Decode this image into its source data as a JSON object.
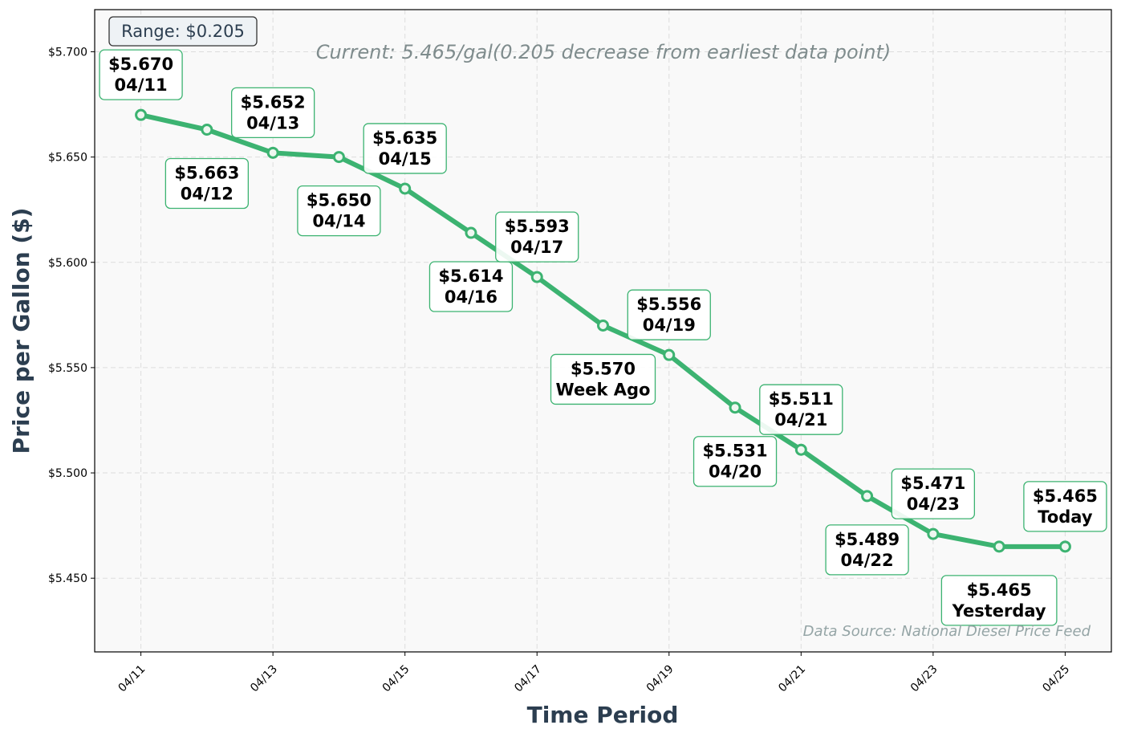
{
  "chart_data": {
    "type": "line",
    "title": "",
    "xlabel": "Time Period",
    "ylabel": "Price per Gallon ($)",
    "x": [
      "04/11",
      "04/12",
      "04/13",
      "04/14",
      "04/15",
      "04/16",
      "04/17",
      "04/18",
      "04/19",
      "04/20",
      "04/21",
      "04/22",
      "04/23",
      "04/24",
      "04/25"
    ],
    "values": [
      5.67,
      5.663,
      5.652,
      5.65,
      5.635,
      5.614,
      5.593,
      5.57,
      5.556,
      5.531,
      5.511,
      5.489,
      5.471,
      5.465,
      5.465
    ],
    "point_labels": [
      {
        "price": "$5.670",
        "tag": "04/11",
        "position": "above"
      },
      {
        "price": "$5.663",
        "tag": "04/12",
        "position": "below"
      },
      {
        "price": "$5.652",
        "tag": "04/13",
        "position": "above"
      },
      {
        "price": "$5.650",
        "tag": "04/14",
        "position": "below"
      },
      {
        "price": "$5.635",
        "tag": "04/15",
        "position": "above"
      },
      {
        "price": "$5.614",
        "tag": "04/16",
        "position": "below"
      },
      {
        "price": "$5.593",
        "tag": "04/17",
        "position": "above"
      },
      {
        "price": "$5.570",
        "tag": "Week Ago",
        "position": "below"
      },
      {
        "price": "$5.556",
        "tag": "04/19",
        "position": "above"
      },
      {
        "price": "$5.531",
        "tag": "04/20",
        "position": "below"
      },
      {
        "price": "$5.511",
        "tag": "04/21",
        "position": "above"
      },
      {
        "price": "$5.489",
        "tag": "04/22",
        "position": "below"
      },
      {
        "price": "$5.471",
        "tag": "04/23",
        "position": "above"
      },
      {
        "price": "$5.465",
        "tag": "Yesterday",
        "position": "below"
      },
      {
        "price": "$5.465",
        "tag": "Today",
        "position": "above"
      }
    ],
    "x_ticks": [
      "04/11",
      "04/13",
      "04/15",
      "04/17",
      "04/19",
      "04/21",
      "04/23",
      "04/25"
    ],
    "y_ticks": [
      5.45,
      5.5,
      5.55,
      5.6,
      5.65,
      5.7
    ],
    "y_tick_labels": [
      "$5.450",
      "$5.500",
      "$5.550",
      "$5.600",
      "$5.650",
      "$5.700"
    ],
    "ylim": [
      5.415,
      5.72
    ],
    "grid": true,
    "annotations": {
      "range": "Range: $0.205",
      "current": "Current: 5.465/gal(0.205 decrease from earliest data point)",
      "source": "Data Source: National Diesel Price Feed"
    },
    "colors": {
      "line": "#3cb371",
      "axis_label": "#2c3e50",
      "current_text": "#7f8c8d",
      "source_text": "#95a5a6",
      "plot_bg": "#f9f9f9"
    }
  }
}
